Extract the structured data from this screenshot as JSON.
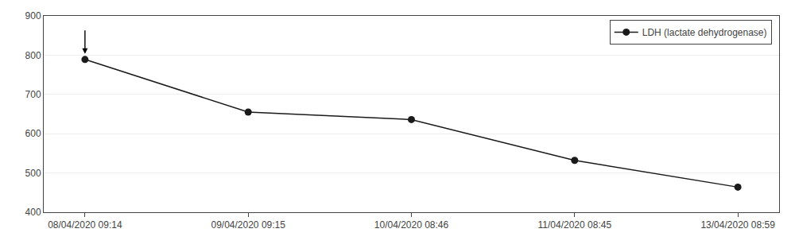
{
  "chart_data": {
    "type": "line",
    "categories": [
      "08/04/2020 09:14",
      "09/04/2020 09:15",
      "10/04/2020 08:46",
      "11/04/2020 08:45",
      "13/04/2020 08:59"
    ],
    "series": [
      {
        "name": "LDH (lactate dehydrogenase)",
        "color": "#1a1a1a",
        "values": [
          789,
          655,
          636,
          532,
          464
        ]
      }
    ],
    "ylim": [
      400,
      900
    ],
    "yticks": [
      400,
      500,
      600,
      700,
      800,
      900
    ],
    "grid": true,
    "legend": "upper right",
    "marker": "circle",
    "line_style": "solid"
  }
}
